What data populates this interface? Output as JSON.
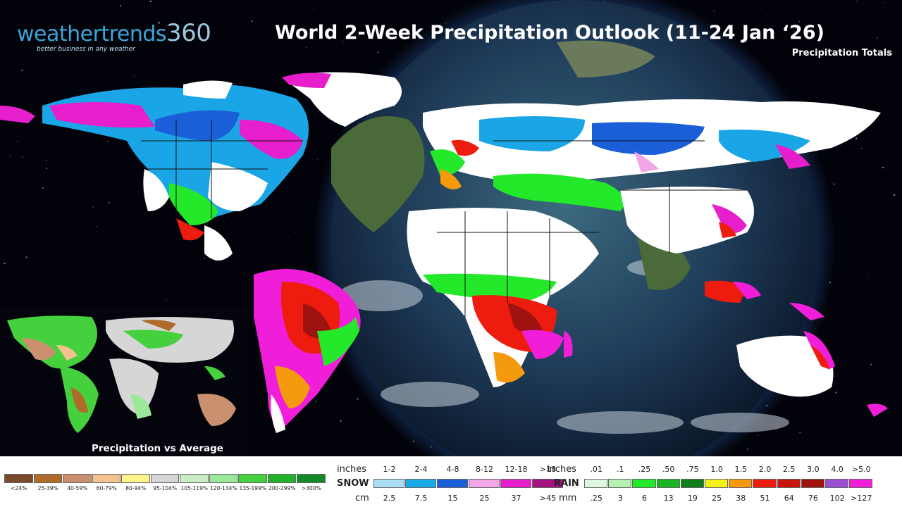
{
  "brand": {
    "name_main": "weathertrends",
    "name_num": "360",
    "tagline": "better business in any weather"
  },
  "title": "World 2-Week Precipitation Outlook (11-24 Jan ‘26)",
  "subtitle": "Precipitation Totals",
  "inset": {
    "label": "Precipitation vs Average"
  },
  "legend": {
    "anomaly": {
      "colors": [
        "#7b4a2c",
        "#b06a2a",
        "#c98f6e",
        "#f4c28f",
        "#fbf58a",
        "#d6d6d6",
        "#c9eec3",
        "#9be89a",
        "#45d03d",
        "#20b32a",
        "#13892a"
      ],
      "labels": [
        "<24%",
        "25-39%",
        "40-59%",
        "60-79%",
        "80-94%",
        "95-104%",
        "105-119%",
        "120-134%",
        "135-199%",
        "200-299%",
        ">300%"
      ]
    },
    "snow": {
      "inches_label": "inches",
      "inches": [
        "1-2",
        "2-4",
        "4-8",
        "8-12",
        "12-18",
        ">18"
      ],
      "name": "SNOW",
      "colors": [
        "#a9dcf5",
        "#19a9e8",
        "#1b5fd8",
        "#f2a6e6",
        "#e61ecb",
        "#a3127e"
      ],
      "cm_label": "cm",
      "cm": [
        "2.5",
        "7.5",
        "15",
        "25",
        "37",
        ">45"
      ]
    },
    "rain": {
      "inches_label": "inches",
      "inches": [
        ".01",
        ".1",
        ".25",
        ".50",
        ".75",
        "1.0",
        "1.5",
        "2.0",
        "2.5",
        "3.0",
        "4.0",
        ">5.0"
      ],
      "name": "RAIN",
      "colors": [
        "#dff7df",
        "#b5f0b0",
        "#24e82a",
        "#18b520",
        "#0f7d18",
        "#f4f21a",
        "#f59a0c",
        "#ee1c0e",
        "#c8140c",
        "#9e1210",
        "#9a4fd0",
        "#f01ed8"
      ],
      "mm_label": "mm",
      "mm": [
        ".25",
        "3",
        "6",
        "13",
        "19",
        "25",
        "38",
        "51",
        "64",
        "76",
        "102",
        ">127"
      ]
    }
  }
}
